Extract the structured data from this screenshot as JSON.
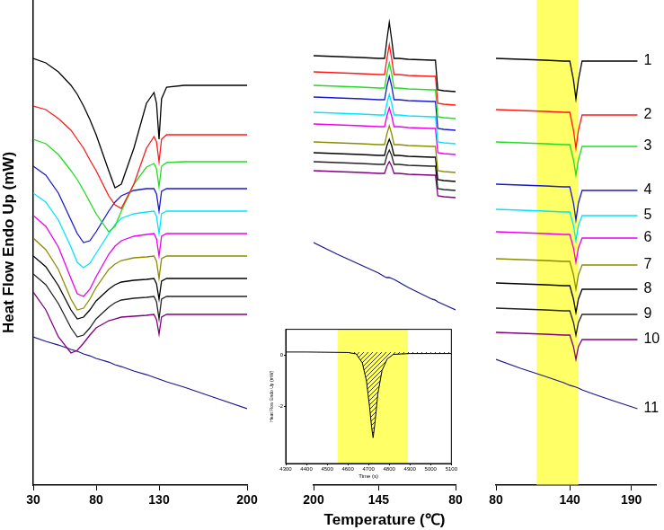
{
  "chart_data": [
    {
      "type": "line",
      "x_label": "Temperature (℃)",
      "y_label": "Heat Flow Endo Up (mW)",
      "ylim": [
        0,
        540
      ],
      "tick_labels": "x",
      "grid": false,
      "segments": [
        {
          "xlim": [
            30,
            200
          ],
          "xticks": [
            30,
            80,
            130,
            200
          ],
          "x": [
            30,
            40,
            50,
            60,
            65,
            70,
            75,
            80,
            90,
            95,
            100,
            110,
            120,
            126,
            128,
            130,
            132,
            136,
            150,
            175,
            200
          ]
        },
        {
          "xlim": [
            200,
            80
          ],
          "xticks": [
            200,
            145,
            80
          ],
          "x": [
            200,
            180,
            160,
            145,
            140,
            138,
            136,
            134,
            132,
            128,
            120,
            100,
            97,
            95,
            90,
            80
          ]
        },
        {
          "xlim": [
            80,
            210
          ],
          "xticks": [
            80,
            140,
            190
          ],
          "band": [
            113,
            147
          ],
          "x": [
            80,
            100,
            120,
            135,
            140,
            143,
            145,
            147,
            150,
            160,
            175,
            195
          ]
        }
      ],
      "series": [
        {
          "name": "1",
          "color": "#000000",
          "values": [
            [
              475,
              470,
              460,
              445,
              435,
              422,
              407,
              390,
              350,
              331,
              335,
              375,
              425,
              437,
              425,
              385,
              430,
              443,
              445,
              445,
              445
            ],
            [
              478,
              477,
              476,
              475,
              475,
              496,
              515,
              496,
              475,
              475,
              474,
              473,
              473,
              440,
              439,
              438
            ],
            [
              475,
              474,
              473,
              472,
              472,
              451,
              430,
              451,
              472,
              472,
              472,
              472
            ]
          ]
        },
        {
          "name": "2",
          "color": "#ff1a1a",
          "values": [
            [
              422,
              418,
              408,
              395,
              385,
              375,
              362,
              350,
              322,
              312,
              308,
              335,
              375,
              388,
              382,
              360,
              385,
              390,
              390,
              390,
              390
            ],
            [
              460,
              459,
              458,
              457,
              457,
              475,
              490,
              475,
              457,
              457,
              456,
              455,
              455,
              425,
              424,
              423
            ],
            [
              418,
              417,
              416,
              415,
              415,
              395,
              375,
              395,
              412,
              412,
              412,
              412
            ]
          ]
        },
        {
          "name": "3",
          "color": "#22dd22",
          "values": [
            [
              385,
              380,
              368,
              350,
              340,
              328,
              315,
              302,
              282,
              288,
              305,
              335,
              354,
              358,
              352,
              332,
              355,
              359,
              360,
              360,
              360
            ],
            [
              445,
              444,
              443,
              442,
              442,
              458,
              470,
              458,
              442,
              442,
              441,
              440,
              440,
              410,
              409,
              408
            ],
            [
              382,
              381,
              380,
              379,
              379,
              362,
              345,
              362,
              377,
              377,
              377,
              377
            ]
          ]
        },
        {
          "name": "4",
          "color": "#1a1acc",
          "values": [
            [
              355,
              345,
              325,
              295,
              280,
              270,
              272,
              282,
              305,
              315,
              322,
              328,
              330,
              330,
              324,
              305,
              327,
              330,
              330,
              330,
              330
            ],
            [
              432,
              431,
              430,
              429,
              429,
              444,
              455,
              444,
              429,
              429,
              428,
              427,
              427,
              397,
              396,
              395
            ],
            [
              335,
              334,
              333,
              332,
              332,
              314,
              295,
              314,
              328,
              328,
              328,
              328
            ]
          ]
        },
        {
          "name": "5",
          "color": "#00e5ff",
          "values": [
            [
              325,
              315,
              295,
              265,
              248,
              242,
              247,
              258,
              280,
              290,
              297,
              302,
              304,
              305,
              299,
              280,
              302,
              305,
              305,
              305,
              305
            ],
            [
              415,
              414,
              413,
              412,
              412,
              425,
              435,
              425,
              412,
              412,
              411,
              410,
              410,
              382,
              381,
              380
            ],
            [
              307,
              306,
              305,
              304,
              304,
              289,
              272,
              289,
              300,
              300,
              300,
              300
            ]
          ]
        },
        {
          "name": "6",
          "color": "#ee00ee",
          "values": [
            [
              300,
              288,
              265,
              230,
              213,
              210,
              218,
              232,
              257,
              266,
              272,
              277,
              279,
              280,
              274,
              255,
              277,
              280,
              280,
              280,
              280
            ],
            [
              402,
              401,
              400,
              399,
              399,
              411,
              420,
              411,
              399,
              399,
              398,
              397,
              397,
              370,
              369,
              368
            ],
            [
              282,
              281,
              280,
              279,
              279,
              264,
              248,
              264,
              275,
              275,
              275,
              275
            ]
          ]
        },
        {
          "name": "7",
          "color": "#8c8c00",
          "values": [
            [
              275,
              262,
              240,
              207,
              195,
              197,
              207,
              220,
              240,
              246,
              250,
              253,
              254,
              255,
              249,
              230,
              252,
              255,
              255,
              255,
              255
            ],
            [
              382,
              381,
              380,
              379,
              379,
              391,
              400,
              391,
              379,
              379,
              378,
              377,
              377,
              350,
              349,
              348
            ],
            [
              252,
              251,
              250,
              249,
              249,
              234,
              218,
              234,
              245,
              245,
              245,
              245
            ]
          ]
        },
        {
          "name": "8",
          "color": "#000000",
          "values": [
            [
              255,
              243,
              222,
              195,
              185,
              187,
              195,
              205,
              218,
              223,
              226,
              228,
              229,
              230,
              224,
              207,
              227,
              230,
              230,
              230,
              230
            ],
            [
              370,
              369,
              368,
              367,
              367,
              378,
              385,
              378,
              367,
              367,
              366,
              365,
              365,
              340,
              339,
              338
            ],
            [
              225,
              224,
              223,
              222,
              222,
              207,
              192,
              207,
              218,
              218,
              218,
              218
            ]
          ]
        },
        {
          "name": "9",
          "color": "#222222",
          "values": [
            [
              235,
              223,
              202,
              175,
              165,
              167,
              175,
              185,
              198,
              203,
              206,
              208,
              209,
              210,
              204,
              185,
              207,
              210,
              210,
              210,
              210
            ],
            [
              360,
              359,
              358,
              357,
              357,
              367,
              373,
              367,
              357,
              357,
              356,
              355,
              355,
              330,
              329,
              328
            ],
            [
              197,
              196,
              195,
              194,
              194,
              181,
              167,
              181,
              190,
              190,
              190,
              190
            ]
          ]
        },
        {
          "name": "10",
          "color": "#800080",
          "values": [
            [
              215,
              195,
              165,
              147,
              150,
              158,
              167,
              175,
              183,
              185,
              187,
              188,
              189,
              190,
              184,
              168,
              187,
              190,
              190,
              190,
              190
            ],
            [
              350,
              349,
              348,
              347,
              347,
              355,
              360,
              355,
              347,
              347,
              346,
              345,
              345,
              322,
              321,
              320
            ],
            [
              170,
              169,
              168,
              167,
              167,
              154,
              140,
              154,
              162,
              162,
              162,
              162
            ]
          ]
        },
        {
          "name": "11",
          "color": "#1a1a8c",
          "values": [
            [
              165,
              160,
              156,
              151,
              149,
              146,
              144,
              141,
              137,
              134,
              132,
              127,
              123,
              120,
              119,
              118,
              117,
              115,
              109,
              97,
              85
            ],
            [
              270,
              257,
              245,
              236,
              232,
              231,
              231,
              230,
              229,
              226,
              220,
              207,
              206,
              204,
              201,
              195
            ],
            [
              140,
              130,
              121,
              114,
              111,
              110,
              109,
              108,
              106,
              101,
              94,
              85
            ]
          ]
        }
      ]
    },
    {
      "type": "line",
      "x_label": "Time (s)",
      "y_label": "Heat Flow Endo Up (mW)",
      "xlim": [
        4300,
        5100
      ],
      "xticks": [
        4300,
        4400,
        4500,
        4600,
        4700,
        4800,
        4900,
        5000,
        5100
      ],
      "ylim": [
        -4.2,
        1
      ],
      "yticks": [
        0,
        -2
      ],
      "grid": false,
      "band": [
        4550,
        4890
      ],
      "color": "#000000",
      "x": [
        4300,
        4400,
        4500,
        4600,
        4640,
        4670,
        4690,
        4705,
        4715,
        4722,
        4730,
        4745,
        4765,
        4790,
        4820,
        4900,
        5000,
        5100
      ],
      "values": [
        0.12,
        0.12,
        0.11,
        0.1,
        0.05,
        -0.3,
        -1.0,
        -2.0,
        -2.8,
        -3.2,
        -2.7,
        -1.5,
        -0.6,
        -0.15,
        0.03,
        0.06,
        0.06,
        0.06
      ]
    }
  ]
}
